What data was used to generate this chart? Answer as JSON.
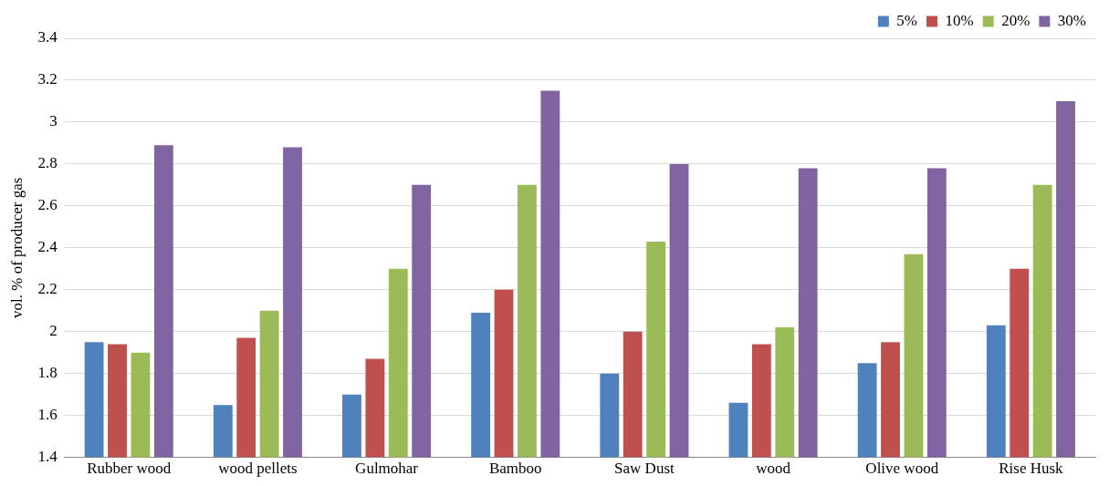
{
  "chart_data": {
    "type": "bar",
    "ylabel": "vol. % of producer gas",
    "categories": [
      "Rubber wood",
      "wood pellets",
      "Gulmohar",
      "Bamboo",
      "Saw Dust",
      "wood",
      "Olive wood",
      "Rise Husk"
    ],
    "series": [
      {
        "name": "5%",
        "color": "#4f81bd",
        "values": [
          1.95,
          1.65,
          1.7,
          2.09,
          1.8,
          1.66,
          1.85,
          2.03
        ]
      },
      {
        "name": "10%",
        "color": "#c0504d",
        "values": [
          1.94,
          1.97,
          1.87,
          2.2,
          2.0,
          1.94,
          1.95,
          2.3
        ]
      },
      {
        "name": "20%",
        "color": "#9bbb59",
        "values": [
          1.9,
          2.1,
          2.3,
          2.7,
          2.43,
          2.02,
          2.37,
          2.7
        ]
      },
      {
        "name": "30%",
        "color": "#8064a2",
        "values": [
          2.89,
          2.88,
          2.7,
          3.15,
          2.8,
          2.78,
          2.78,
          3.1
        ]
      }
    ],
    "ylim": [
      1.4,
      3.4
    ],
    "yticks": [
      1.4,
      1.6,
      1.8,
      2,
      2.2,
      2.4,
      2.6,
      2.8,
      3,
      3.2,
      3.4
    ],
    "grid": "y",
    "legend": "top right"
  }
}
